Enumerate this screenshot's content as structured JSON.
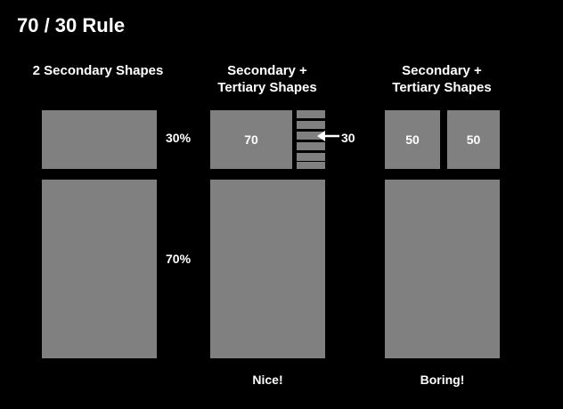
{
  "title": "70 / 30 Rule",
  "columns": [
    {
      "heading_lines": [
        "2 Secondary Shapes"
      ],
      "top_label": "30%",
      "bottom_label": "70%",
      "caption": ""
    },
    {
      "heading_lines": [
        "Secondary +",
        "Tertiary Shapes"
      ],
      "top_value": "70",
      "tertiary_value": "30",
      "caption": "Nice!"
    },
    {
      "heading_lines": [
        "Secondary +",
        "Tertiary Shapes"
      ],
      "top_values": [
        "50",
        "50"
      ],
      "caption": "Boring!"
    }
  ],
  "colors": {
    "background": "#000000",
    "shape": "#808080",
    "text": "#ffffff"
  },
  "icons": [
    "arrow-left-icon"
  ]
}
